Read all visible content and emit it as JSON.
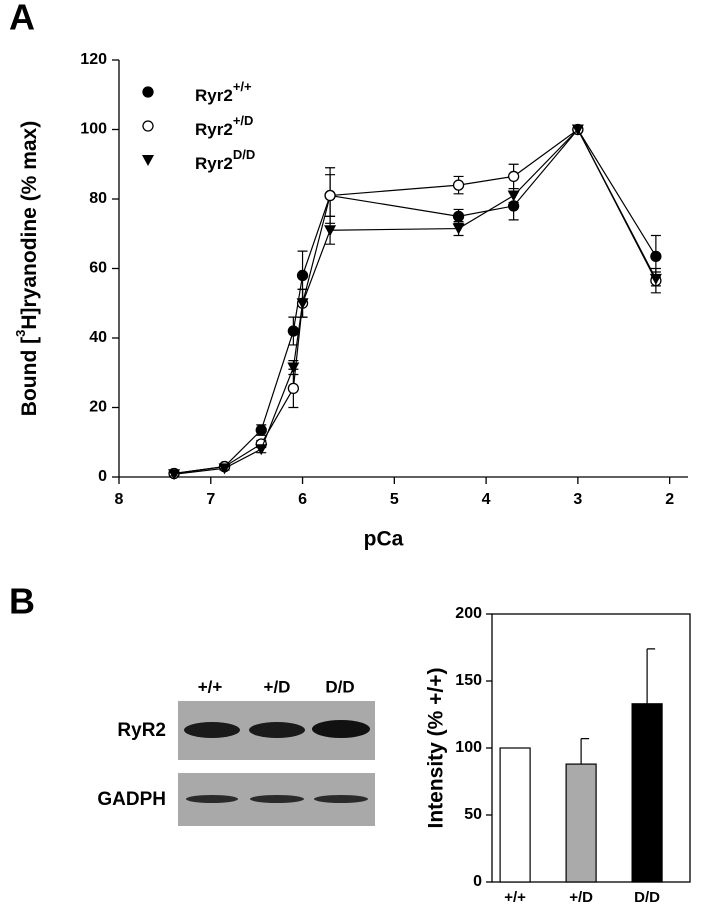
{
  "chart_data": [
    {
      "type": "line",
      "panel": "A",
      "xlabel": "pCa",
      "ylabel": [
        "Bound [",
        "3",
        "H]ryanodine (% max)"
      ],
      "x": [
        7.4,
        6.85,
        6.45,
        6.1,
        6.0,
        5.7,
        4.3,
        3.7,
        3.0,
        2.15
      ],
      "xlim": [
        8,
        1.8
      ],
      "xticks": [
        8,
        7,
        6,
        5,
        4,
        3,
        2
      ],
      "ylim": [
        0,
        120
      ],
      "yticks": [
        0,
        20,
        40,
        60,
        80,
        100,
        120
      ],
      "series": [
        {
          "name": [
            "Ryr2",
            "+/+"
          ],
          "color": "#000000",
          "marker": "circle",
          "values": [
            1,
            3,
            13.5,
            42,
            58,
            81,
            75,
            78,
            100,
            63.5
          ],
          "errors": [
            0.5,
            0.5,
            1.5,
            4,
            7,
            8,
            2,
            4,
            0,
            6
          ]
        },
        {
          "name": [
            "Ryr2",
            "+/D"
          ],
          "color": "#000000",
          "marker": "circle-open",
          "values": [
            1,
            3,
            9.5,
            25.5,
            50,
            81,
            84,
            86.5,
            100,
            56.5
          ],
          "errors": [
            0.5,
            0.5,
            1,
            5.5,
            4,
            6,
            2.5,
            3.5,
            0,
            3.5
          ]
        },
        {
          "name": [
            "Ryr2",
            "D/D"
          ],
          "color": "#000000",
          "marker": "triangle-down",
          "values": [
            0.8,
            2.5,
            8,
            31.5,
            50,
            71,
            71.5,
            81,
            100,
            57
          ],
          "errors": [
            0.5,
            0.5,
            1,
            2,
            4,
            4,
            2,
            2,
            0,
            2
          ]
        }
      ]
    },
    {
      "type": "bar",
      "panel": "B",
      "ylabel": "Intensity (% +/+)",
      "categories": [
        "+/+",
        "+/D",
        "D/D"
      ],
      "values": [
        100,
        88,
        133
      ],
      "errors": [
        null,
        19,
        41
      ],
      "colors": [
        "#ffffff",
        "#aaaaaa",
        "#000000"
      ],
      "ylim": [
        0,
        200
      ],
      "yticks": [
        0,
        50,
        100,
        150,
        200
      ]
    }
  ],
  "blot": {
    "lanes": [
      "+/+",
      "+/D",
      "D/D"
    ],
    "rows": [
      "RyR2",
      "GADPH"
    ]
  }
}
